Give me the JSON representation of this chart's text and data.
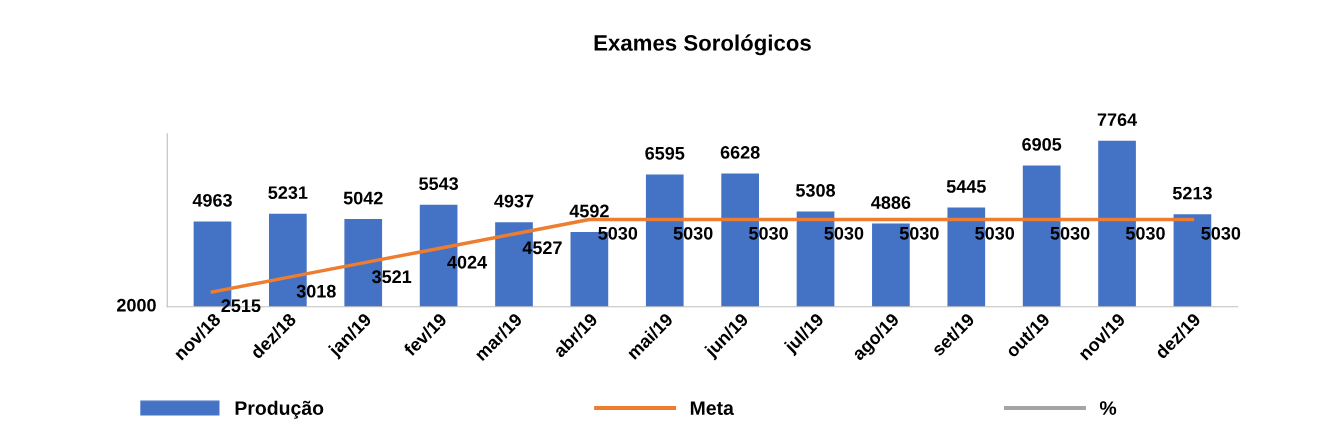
{
  "chart_data": {
    "type": "bar",
    "title": "Exames Sorológicos",
    "categories": [
      "nov/18",
      "dez/18",
      "jan/19",
      "fev/19",
      "mar/19",
      "abr/19",
      "mai/19",
      "jun/19",
      "jul/19",
      "ago/19",
      "set/19",
      "out/19",
      "nov/19",
      "dez/19"
    ],
    "series": [
      {
        "name": "Produção",
        "color": "#4472c4",
        "values": [
          4963,
          5231,
          5042,
          5543,
          4937,
          4592,
          6595,
          6628,
          5308,
          4886,
          5445,
          6905,
          7764,
          5213
        ]
      },
      {
        "name": "Meta",
        "type": "line",
        "color": "#ed7d31",
        "values": [
          2515,
          3018,
          3521,
          4024,
          4527,
          5030,
          5030,
          5030,
          5030,
          5030,
          5030,
          5030,
          5030,
          5030
        ]
      },
      {
        "name": "%",
        "type": "line",
        "color": "#a5a5a5",
        "values": [
          null,
          null,
          null,
          null,
          null,
          null,
          null,
          null,
          null,
          null,
          null,
          null,
          null,
          null
        ]
      }
    ],
    "ylim": [
      2000,
      8000
    ],
    "annotations": [
      "2000"
    ],
    "data_labels": true,
    "grid": false,
    "legend": "bottom",
    "marker": "none",
    "line_style": "solid"
  }
}
